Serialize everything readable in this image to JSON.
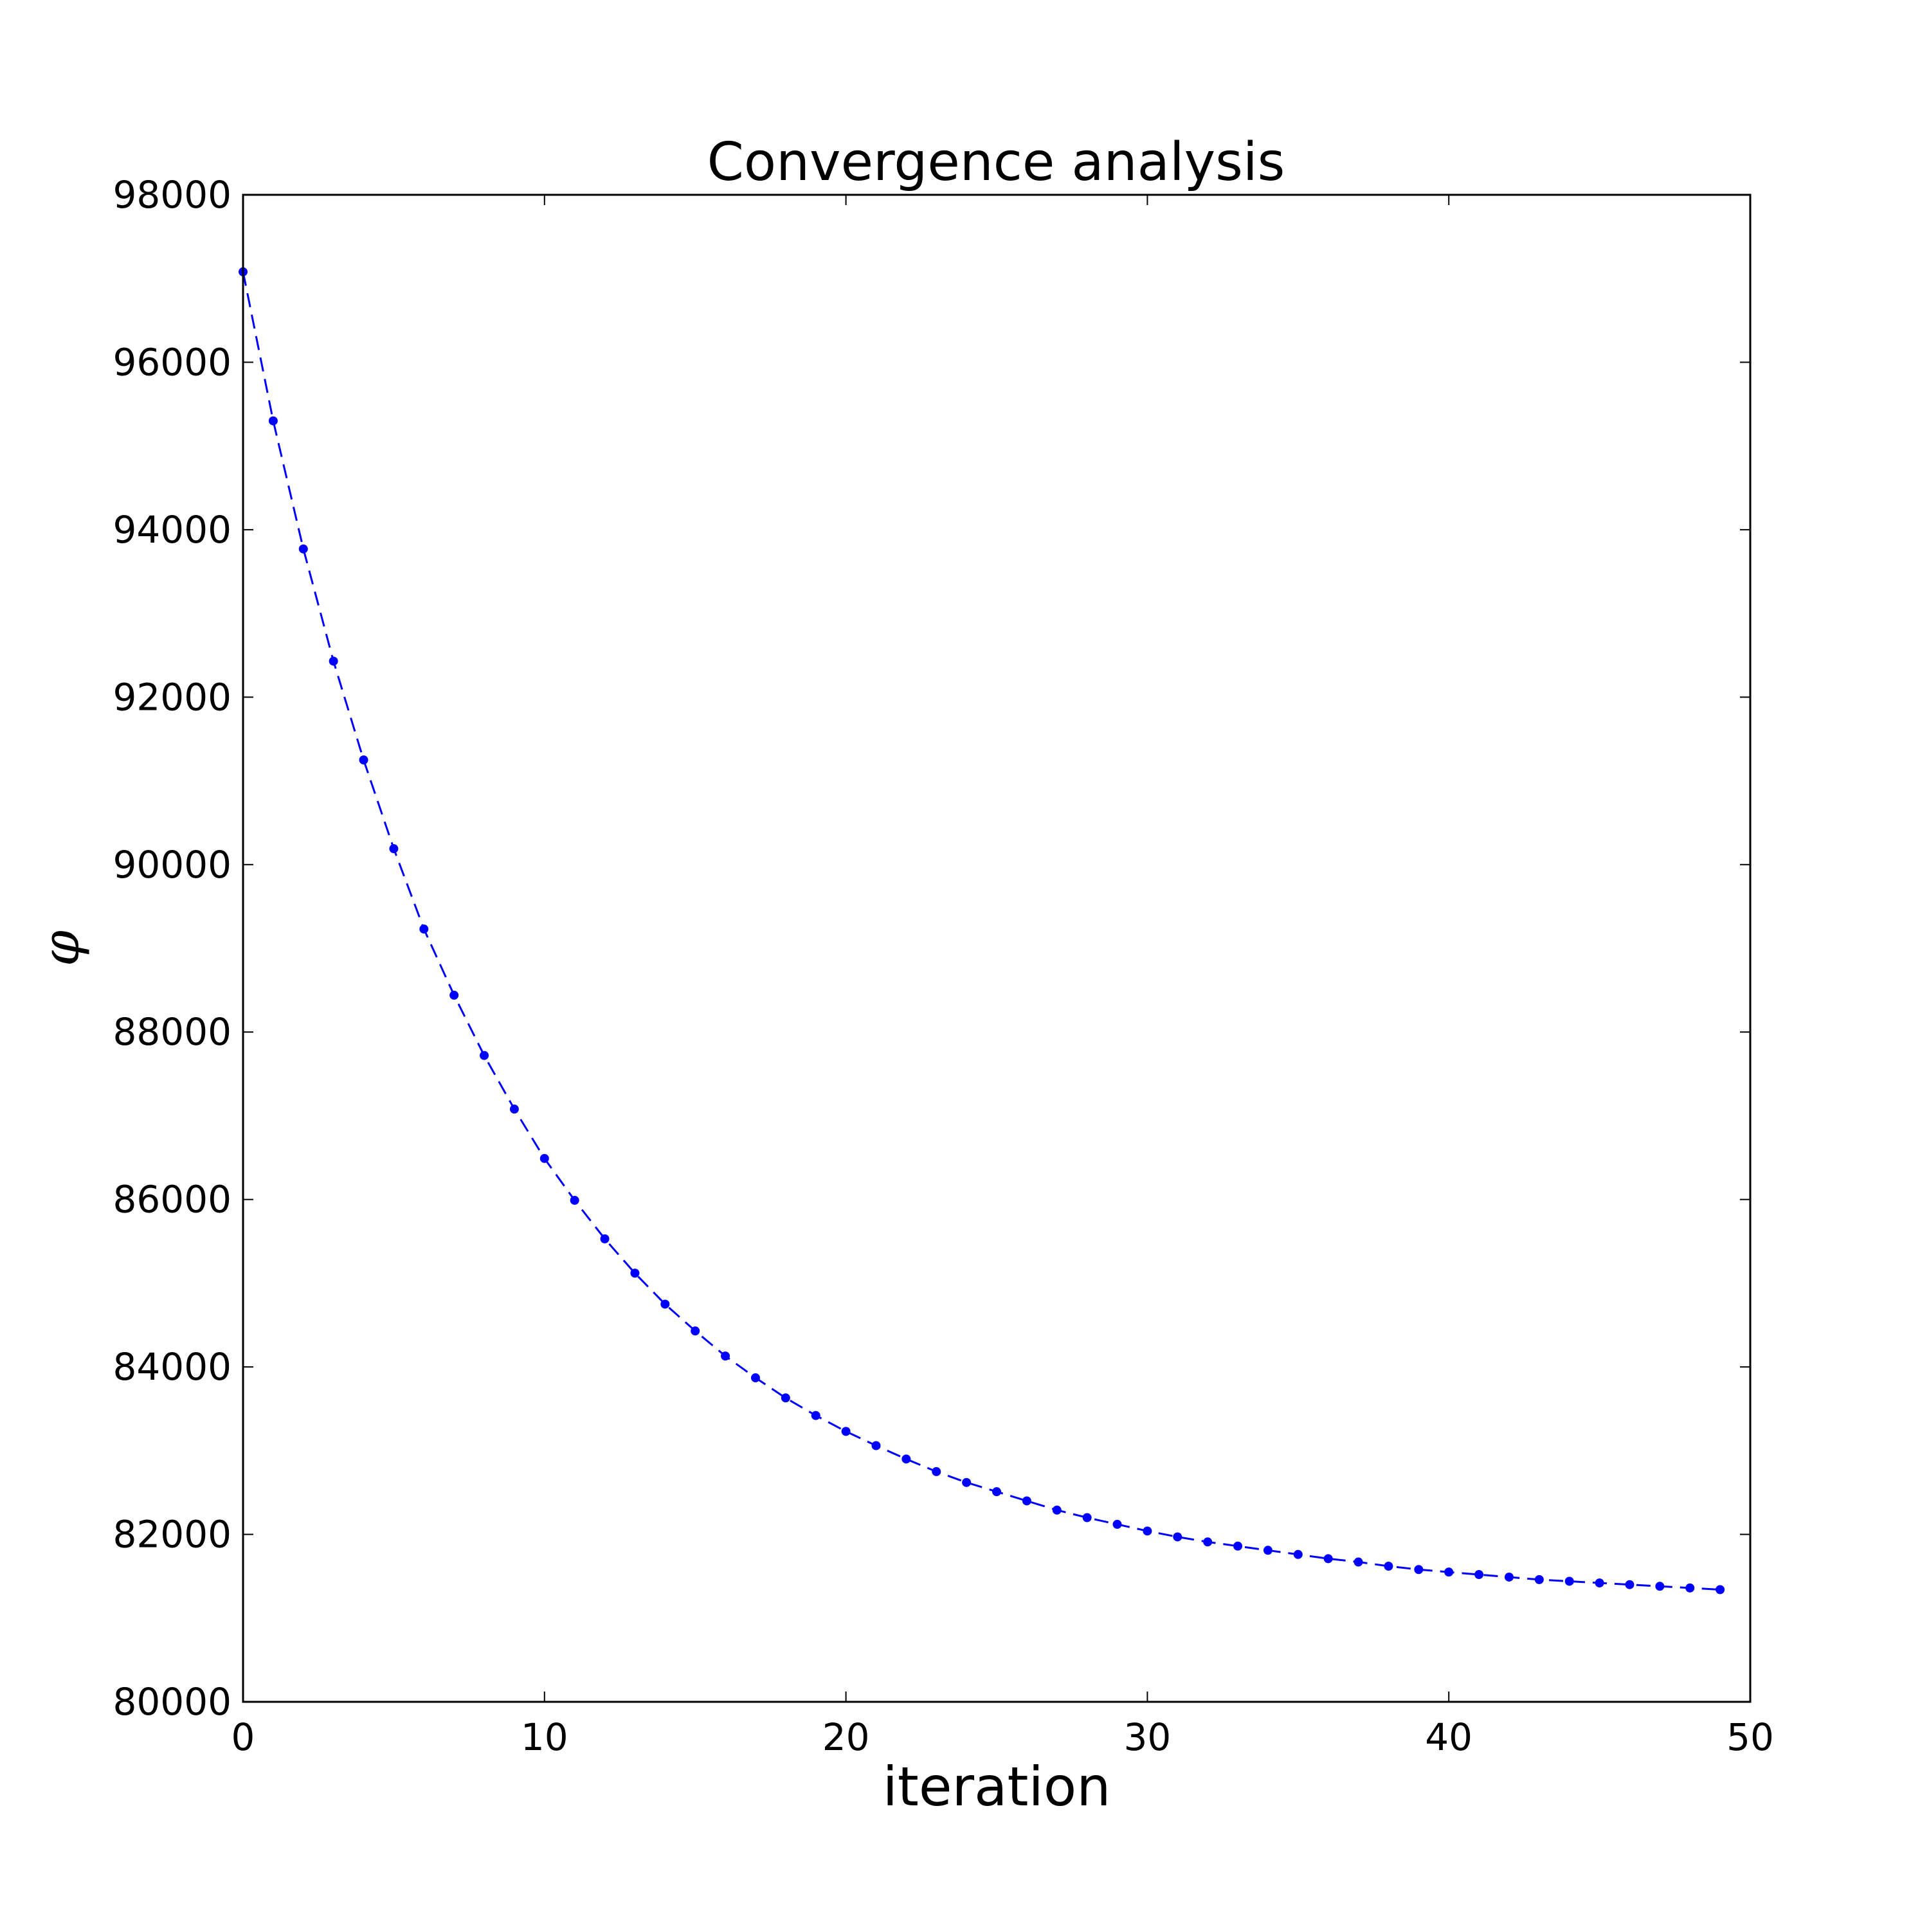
{
  "chart_data": {
    "type": "line",
    "title": "Convergence analysis",
    "xlabel": "iteration",
    "ylabel": "φ",
    "xlim": [
      0,
      50
    ],
    "ylim": [
      80000,
      98000
    ],
    "xticks": [
      0,
      10,
      20,
      30,
      40,
      50
    ],
    "yticks": [
      80000,
      82000,
      84000,
      86000,
      88000,
      90000,
      92000,
      94000,
      96000,
      98000
    ],
    "grid": false,
    "line_style": "dashed",
    "marker": "dot",
    "color": "#0000ff",
    "x": [
      0,
      1,
      2,
      3,
      4,
      5,
      6,
      7,
      8,
      9,
      10,
      11,
      12,
      13,
      14,
      15,
      16,
      17,
      18,
      19,
      20,
      21,
      22,
      23,
      24,
      25,
      26,
      27,
      28,
      29,
      30,
      31,
      32,
      33,
      34,
      35,
      36,
      37,
      38,
      39,
      40,
      41,
      42,
      43,
      44,
      45,
      46,
      47,
      48,
      49
    ],
    "y": [
      97080,
      95300,
      93770,
      92430,
      91250,
      90190,
      89230,
      88440,
      87720,
      87080,
      86490,
      85990,
      85530,
      85120,
      84750,
      84430,
      84130,
      83870,
      83630,
      83420,
      83230,
      83060,
      82900,
      82750,
      82620,
      82510,
      82400,
      82290,
      82200,
      82120,
      82040,
      81970,
      81910,
      81860,
      81810,
      81760,
      81710,
      81670,
      81620,
      81580,
      81550,
      81520,
      81490,
      81460,
      81440,
      81420,
      81400,
      81380,
      81360,
      81340
    ]
  }
}
